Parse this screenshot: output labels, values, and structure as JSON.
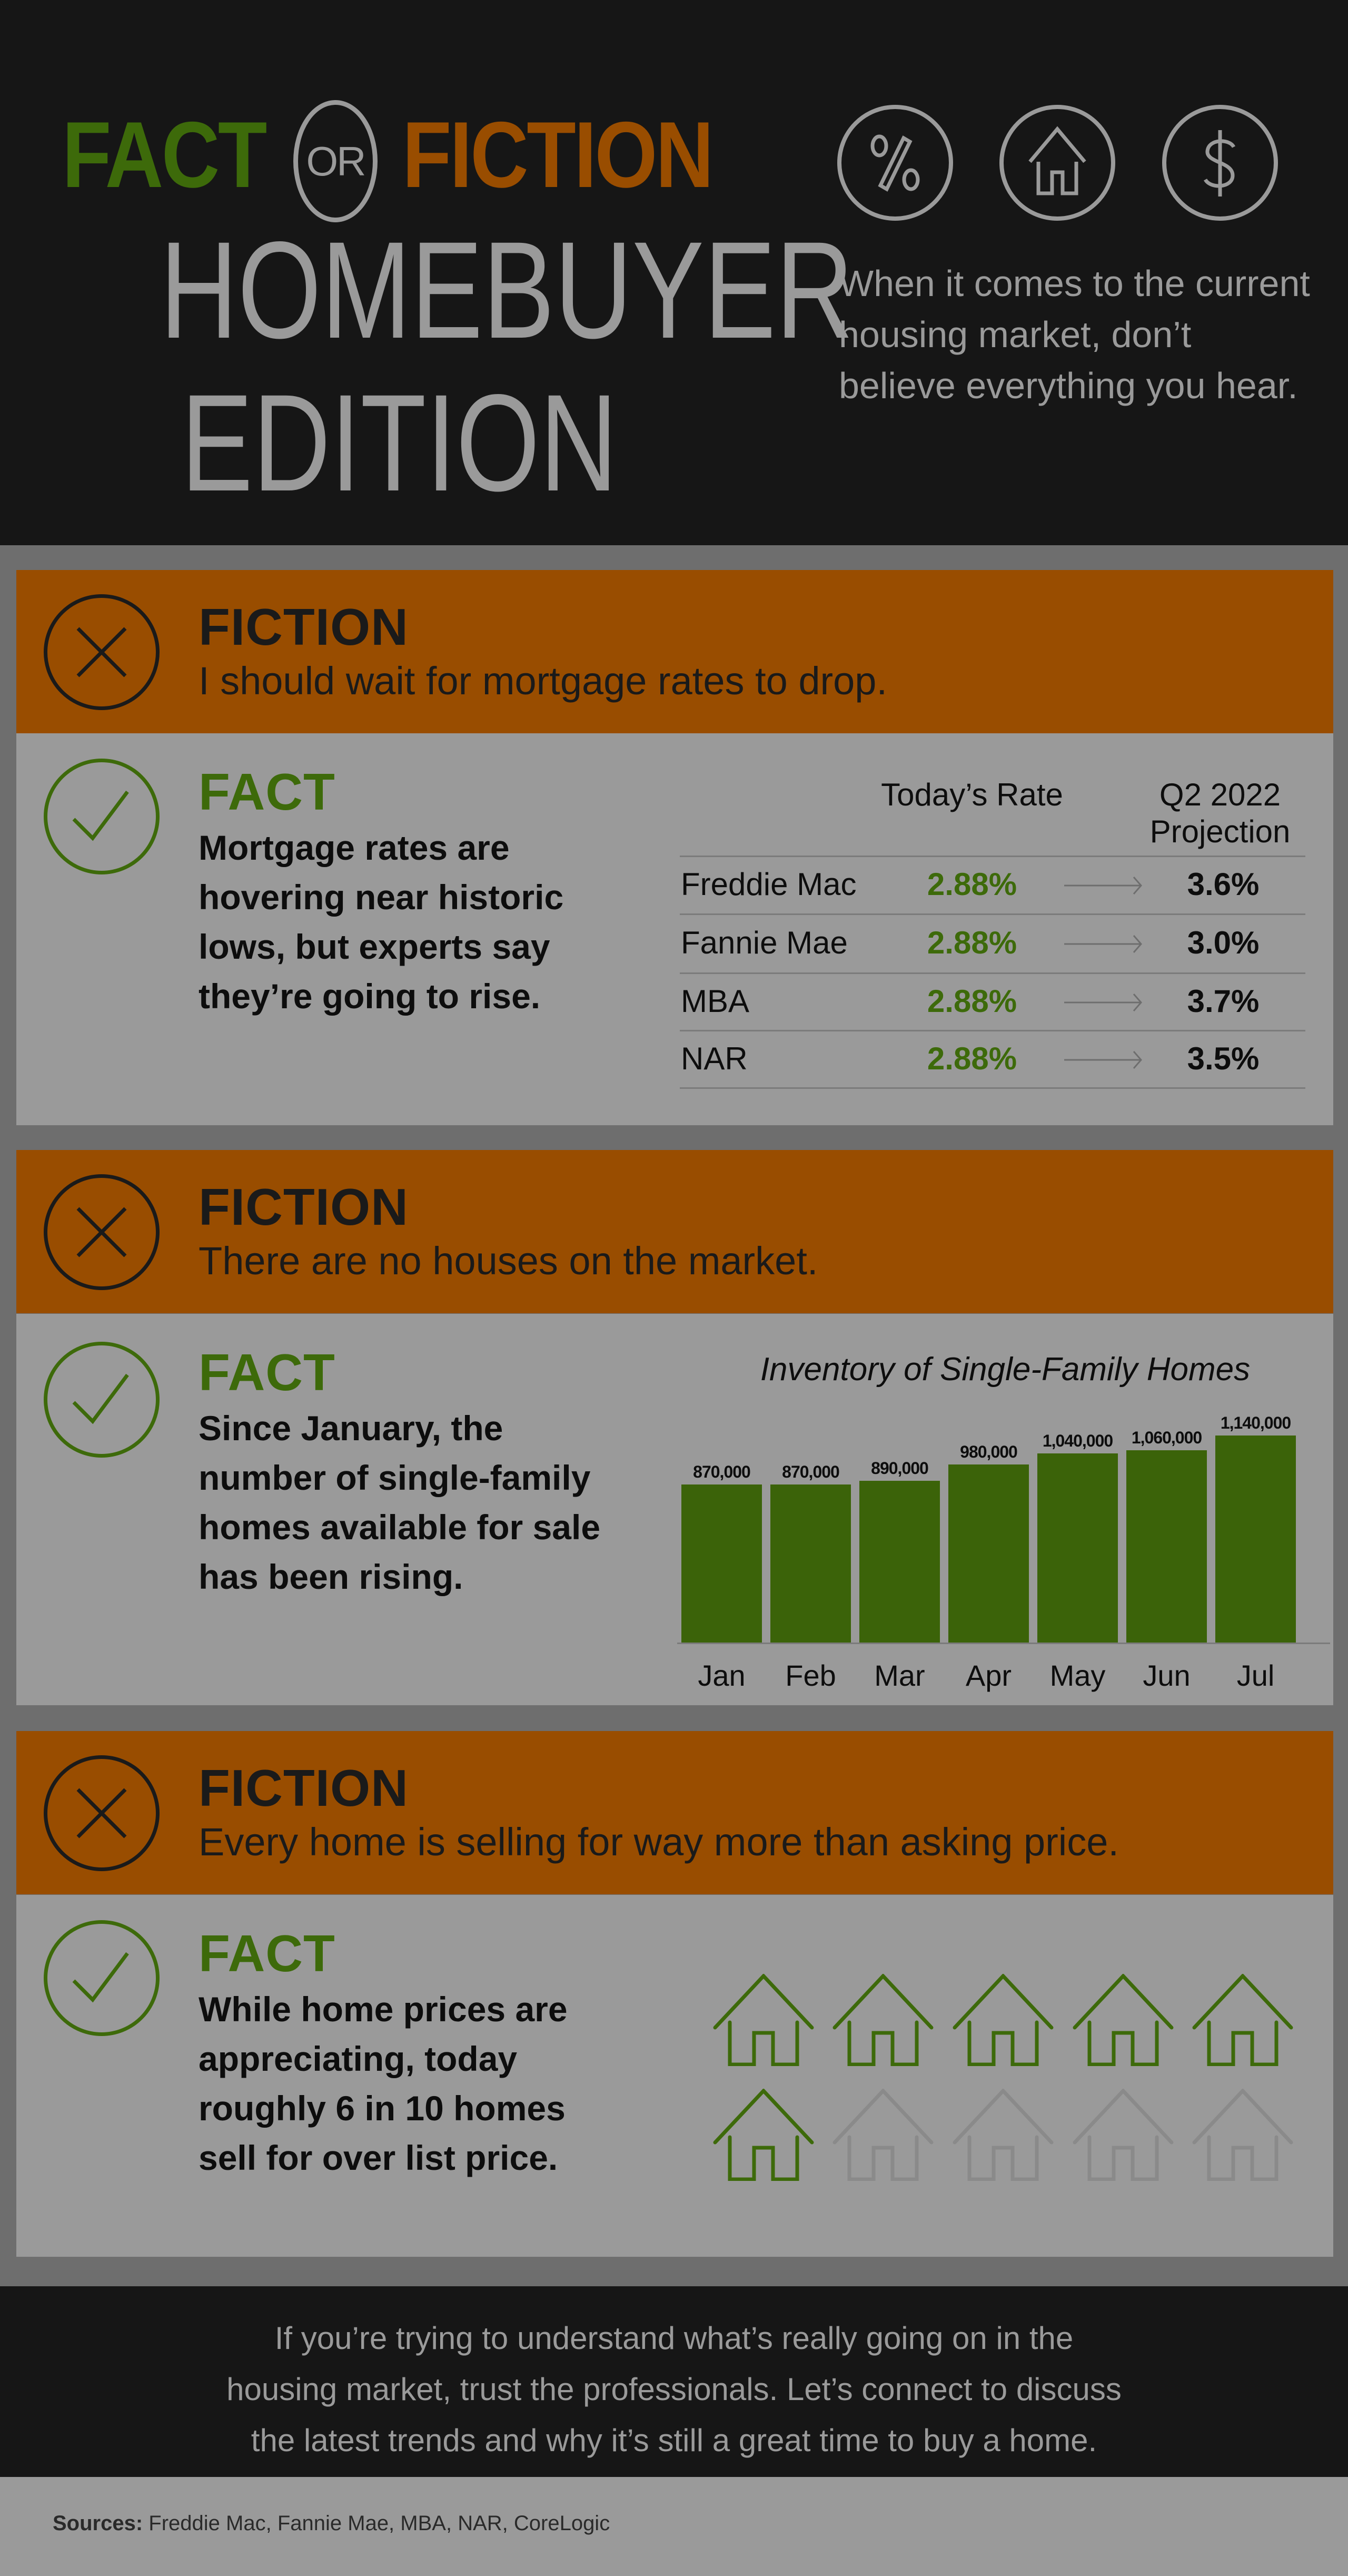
{
  "header": {
    "fact": "FACT",
    "or": "OR",
    "fiction": "FICTION",
    "title_line1": "HOMEBUYER",
    "title_line2": "EDITION",
    "icons": [
      "percent-icon",
      "house-icon",
      "dollar-icon"
    ],
    "tagline": "When it comes to the current housing market, don’t believe everything you hear."
  },
  "colors": {
    "green": "#3d6a0a",
    "orange": "#994d00",
    "dark": "#161616",
    "panel": "#9a9a9a",
    "inactive_house": "#8a8a8a"
  },
  "sections": [
    {
      "fiction_label": "FICTION",
      "fiction_text": "I should wait for mortgage rates to drop.",
      "fact_label": "FACT",
      "fact_text": "Mortgage rates are hovering near historic lows, but experts say they’re going to rise.",
      "table": {
        "col_today": "Today’s Rate",
        "col_proj": "Q2 2022 Projection",
        "rows": [
          {
            "source": "Freddie Mac",
            "today": "2.88%",
            "proj": "3.6%"
          },
          {
            "source": "Fannie Mae",
            "today": "2.88%",
            "proj": "3.0%"
          },
          {
            "source": "MBA",
            "today": "2.88%",
            "proj": "3.7%"
          },
          {
            "source": "NAR",
            "today": "2.88%",
            "proj": "3.5%"
          }
        ]
      }
    },
    {
      "fiction_label": "FICTION",
      "fiction_text": "There are no houses on the market.",
      "fact_label": "FACT",
      "fact_text": "Since January, the number of single-family homes available for sale has been rising."
    },
    {
      "fiction_label": "FICTION",
      "fiction_text": "Every home is selling for way more than asking price.",
      "fact_label": "FACT",
      "fact_text": "While home prices are appreciating, today roughly 6 in 10 homes sell for over list price.",
      "houses": {
        "filled": 6,
        "total": 10
      }
    }
  ],
  "chart_data": {
    "type": "bar",
    "title": "Inventory of Single-Family Homes",
    "categories": [
      "Jan",
      "Feb",
      "Mar",
      "Apr",
      "May",
      "Jun",
      "Jul"
    ],
    "values": [
      870000,
      870000,
      890000,
      980000,
      1040000,
      1060000,
      1140000
    ],
    "value_labels": [
      "870,000",
      "870,000",
      "890,000",
      "980,000",
      "1,040,000",
      "1,060,000",
      "1,140,000"
    ],
    "ylim": [
      0,
      1140000
    ],
    "grid": false,
    "color": "#3b6309"
  },
  "footer": {
    "text": "If you’re trying to understand what’s really going on in the housing market, trust the professionals. Let’s connect to discuss the latest trends and why it’s still a great time to buy a home.",
    "sources_label": "Sources:",
    "sources": "Freddie Mac, Fannie Mae, MBA, NAR, CoreLogic"
  }
}
